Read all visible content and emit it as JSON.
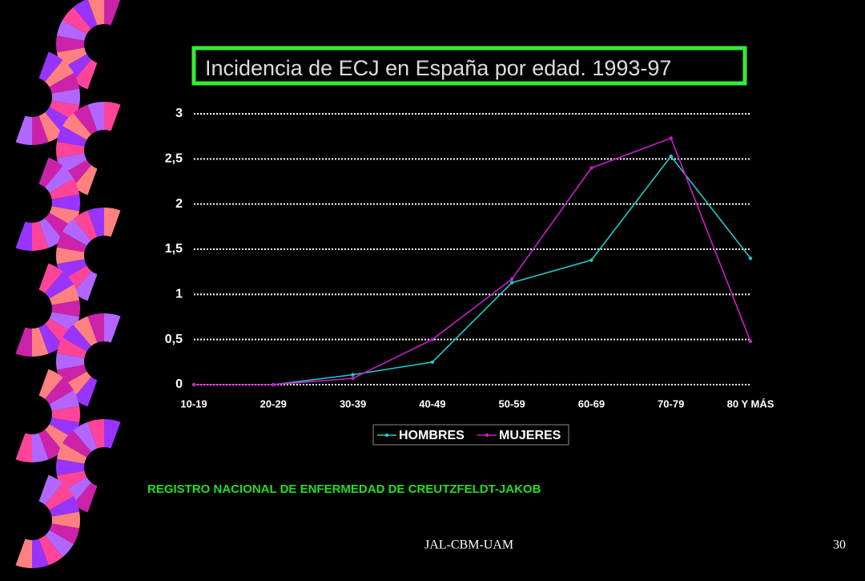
{
  "chart_data": {
    "type": "line",
    "title": "Incidencia de ECJ en España por edad. 1993-97",
    "categories": [
      "10-19",
      "20-29",
      "30-39",
      "40-49",
      "50-59",
      "60-69",
      "70-79",
      "80 Y MÁS"
    ],
    "series": [
      {
        "name": "HOMBRES",
        "color": "#1fc8c8",
        "values": [
          null,
          0,
          0.11,
          0.25,
          1.13,
          1.38,
          2.53,
          1.4
        ]
      },
      {
        "name": "MUJERES",
        "color": "#c81ec8",
        "values": [
          0,
          0,
          0.07,
          0.5,
          1.17,
          2.4,
          2.73,
          0.48
        ]
      }
    ],
    "ylim": [
      0,
      3
    ],
    "yticks": [
      0,
      {
        "value": 0.5,
        "label": "0,5"
      },
      1,
      {
        "value": 1.5,
        "label": "1,5"
      },
      2,
      {
        "value": 2.5,
        "label": "2,5"
      },
      3
    ],
    "grid": true,
    "legend": "bottom",
    "source": "REGISTRO NACIONAL DE ENFERMEDAD DE CREUTZFELDT-JAKOB"
  },
  "slide": {
    "footer": "JAL-CBM-UAM",
    "page_number": "30"
  }
}
